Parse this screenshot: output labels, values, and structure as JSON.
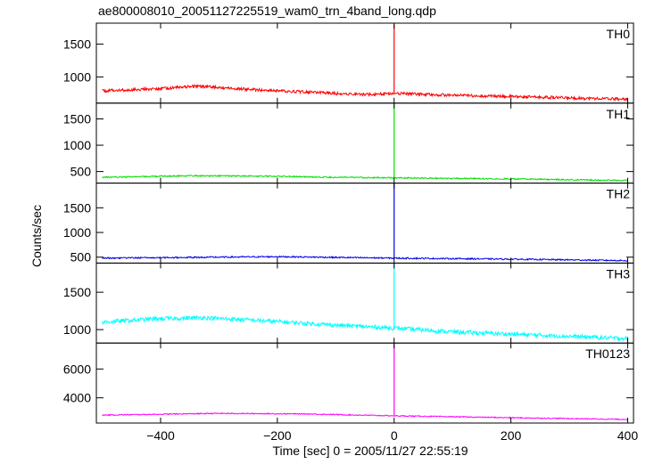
{
  "chart_data": {
    "type": "line",
    "title": "ae800008010_20051127225519_wam0_trn_4band_long.qdp",
    "xlabel": "Time [sec] 0 = 2005/11/27 22:55:19",
    "ylabel": "Counts/sec",
    "xlim": [
      -510,
      410
    ],
    "xticks": [
      -400,
      -200,
      0,
      200,
      400
    ],
    "grid": false,
    "spike_x": 0,
    "panels": [
      {
        "name": "TH0",
        "color": "#ff0000",
        "ylim": [
          600,
          1820
        ],
        "yticks": [
          1000,
          1500
        ],
        "points": [
          [
            -500,
            790
          ],
          [
            -400,
            820
          ],
          [
            -340,
            860
          ],
          [
            -250,
            810
          ],
          [
            -150,
            770
          ],
          [
            -50,
            730
          ],
          [
            0,
            750
          ],
          [
            100,
            720
          ],
          [
            200,
            700
          ],
          [
            300,
            680
          ],
          [
            400,
            660
          ]
        ],
        "noise": 22,
        "spike_peak": 1800
      },
      {
        "name": "TH1",
        "color": "#00e000",
        "ylim": [
          280,
          1800
        ],
        "yticks": [
          500,
          1000,
          1500
        ],
        "points": [
          [
            -500,
            390
          ],
          [
            -350,
            420
          ],
          [
            -200,
            410
          ],
          [
            -100,
            390
          ],
          [
            0,
            380
          ],
          [
            200,
            360
          ],
          [
            400,
            330
          ]
        ],
        "noise": 12,
        "spike_peak": 1800
      },
      {
        "name": "TH2",
        "color": "#0000ee",
        "ylim": [
          380,
          2000
        ],
        "yticks": [
          500,
          1000,
          1500
        ],
        "points": [
          [
            -500,
            480
          ],
          [
            -300,
            500
          ],
          [
            -200,
            510
          ],
          [
            0,
            480
          ],
          [
            200,
            460
          ],
          [
            400,
            430
          ]
        ],
        "noise": 14,
        "spike_peak": 2000
      },
      {
        "name": "TH3",
        "color": "#00ffff",
        "ylim": [
          820,
          1890
        ],
        "yticks": [
          1000,
          1500
        ],
        "points": [
          [
            -500,
            1100
          ],
          [
            -420,
            1140
          ],
          [
            -330,
            1160
          ],
          [
            -250,
            1130
          ],
          [
            -100,
            1060
          ],
          [
            0,
            1020
          ],
          [
            100,
            970
          ],
          [
            200,
            940
          ],
          [
            300,
            910
          ],
          [
            400,
            880
          ]
        ],
        "noise": 28,
        "spike_peak": 1890
      },
      {
        "name": "TH0123",
        "color": "#ff00ff",
        "ylim": [
          2250,
          7800
        ],
        "yticks": [
          4000,
          6000
        ],
        "points": [
          [
            -500,
            2800
          ],
          [
            -300,
            2920
          ],
          [
            -150,
            2880
          ],
          [
            0,
            2750
          ],
          [
            200,
            2620
          ],
          [
            400,
            2500
          ]
        ],
        "noise": 35,
        "spike_peak": 7800
      }
    ]
  }
}
